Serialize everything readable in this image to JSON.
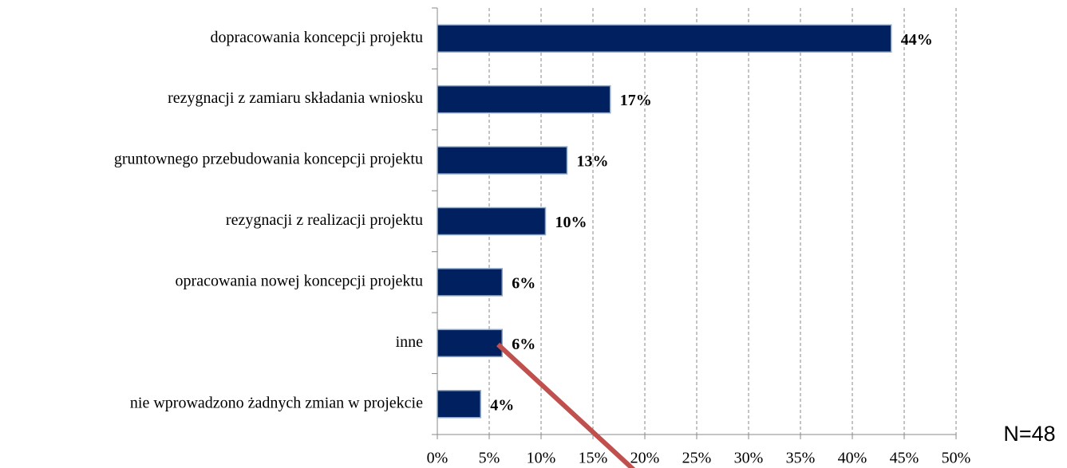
{
  "chart_data": {
    "type": "bar",
    "orientation": "horizontal",
    "categories": [
      "dopracowania koncepcji projektu",
      "rezygnacji z zamiaru składania wniosku",
      "gruntownego przebudowania koncepcji projektu",
      "rezygnacji z realizacji projektu",
      "opracowania nowej koncepcji projektu",
      "inne",
      "nie wprowadzono żadnych zmian w projekcie"
    ],
    "values": [
      43.75,
      16.67,
      12.5,
      10.42,
      6.25,
      6.25,
      4.17
    ],
    "value_labels": [
      "44%",
      "17%",
      "13%",
      "10%",
      "6%",
      "6%",
      "4%"
    ],
    "color": "#002060",
    "xlim": [
      0,
      50
    ],
    "xticks": [
      {
        "value": 0,
        "label": "0%"
      },
      {
        "value": 5,
        "label": "5%"
      },
      {
        "value": 10,
        "label": "10%"
      },
      {
        "value": 15,
        "label": "15%"
      },
      {
        "value": 20,
        "label": "20%"
      },
      {
        "value": 25,
        "label": "25%"
      },
      {
        "value": 30,
        "label": "30%"
      },
      {
        "value": 35,
        "label": "35%"
      },
      {
        "value": 40,
        "label": "40%"
      },
      {
        "value": 45,
        "label": "45%"
      },
      {
        "value": 50,
        "label": "50%"
      }
    ],
    "grid": true,
    "annotation": "N=48"
  }
}
